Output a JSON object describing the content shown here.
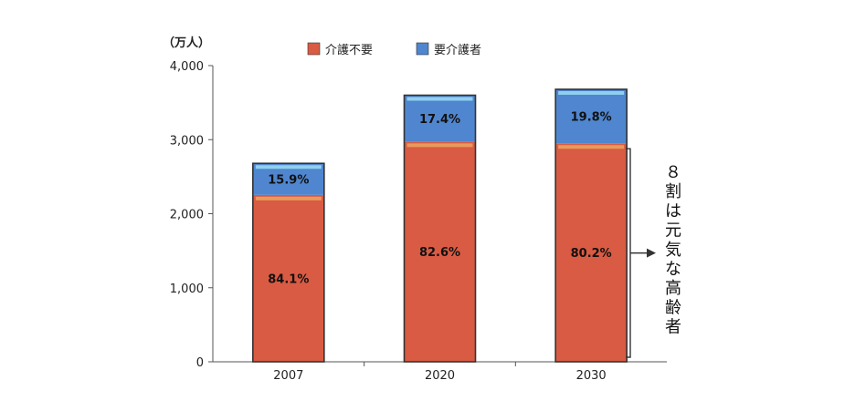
{
  "chart_data": {
    "type": "bar",
    "stacked": true,
    "unit_label": "（万人）",
    "categories": [
      "2007",
      "2020",
      "2030"
    ],
    "totals": [
      2680,
      3600,
      3680
    ],
    "series": [
      {
        "name": "介護不要",
        "color": "#d95b43",
        "values": [
          2254,
          2974,
          2951
        ],
        "labels": [
          "84.1%",
          "82.6%",
          "80.2%"
        ]
      },
      {
        "name": "要介護者",
        "color": "#4f86cf",
        "values": [
          426,
          626,
          729
        ],
        "labels": [
          "15.9%",
          "17.4%",
          "19.8%"
        ]
      }
    ],
    "y_ticks": [
      "0",
      "1,000",
      "2,000",
      "3,000",
      "4,000"
    ],
    "ylim": [
      0,
      4000
    ],
    "legend_position": "top",
    "annotation": {
      "chars": [
        "８",
        "割",
        "は",
        "元",
        "気",
        "な",
        "高",
        "齢",
        "者"
      ]
    }
  }
}
